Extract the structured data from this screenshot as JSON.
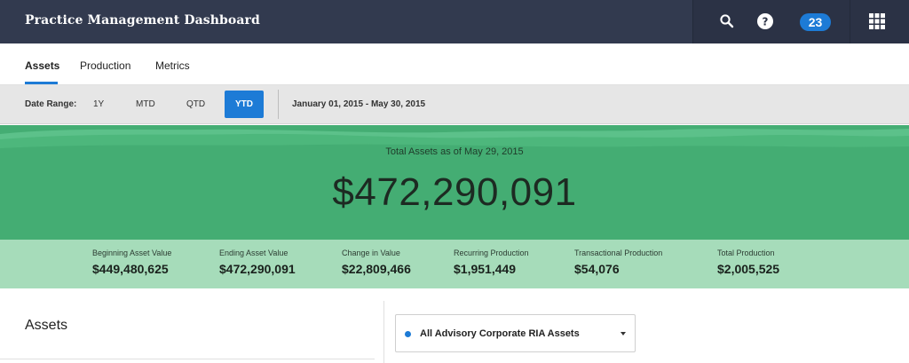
{
  "app": {
    "title": "Practice Management Dashboard",
    "notification_count": "23",
    "icons": [
      "search-icon",
      "help-icon",
      "apps-grid-icon"
    ]
  },
  "tabs": [
    {
      "label": "Assets",
      "active": true
    },
    {
      "label": "Production",
      "active": false
    },
    {
      "label": "Metrics",
      "active": false
    }
  ],
  "date_range": {
    "label": "Date Range:",
    "options": [
      {
        "label": "1Y",
        "active": false
      },
      {
        "label": "MTD",
        "active": false
      },
      {
        "label": "QTD",
        "active": false
      },
      {
        "label": "YTD",
        "active": true
      }
    ],
    "range_text": "January 01, 2015 - May 30, 2015"
  },
  "hero": {
    "subtitle": "Total Assets as of May 29, 2015",
    "value": "$472,290,091"
  },
  "stats": [
    {
      "label": "Beginning Asset Value",
      "value": "$449,480,625"
    },
    {
      "label": "Ending Asset Value",
      "value": "$472,290,091"
    },
    {
      "label": "Change in Value",
      "value": "$22,809,466"
    },
    {
      "label": "Recurring Production",
      "value": "$1,951,449"
    },
    {
      "label": "Transactional Production",
      "value": "$54,076"
    },
    {
      "label": "Total Production",
      "value": "$2,005,525"
    }
  ],
  "assets_section": {
    "title": "Assets",
    "selected_option": "All Advisory Corporate RIA Assets"
  },
  "colors": {
    "topbar": "#323a4f",
    "accent": "#1d7bd6",
    "hero_green": "#44ad73",
    "stats_green": "#a6dcba"
  }
}
